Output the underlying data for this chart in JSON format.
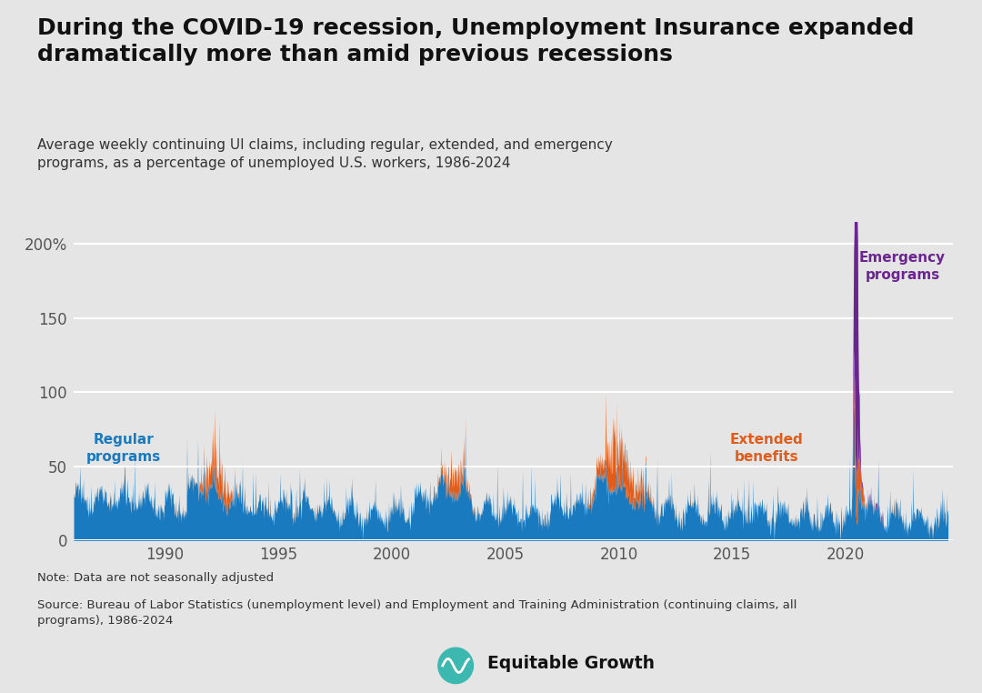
{
  "title": "During the COVID-19 recession, Unemployment Insurance expanded\ndramatically more than amid previous recessions",
  "subtitle": "Average weekly continuing UI claims, including regular, extended, and emergency\nprograms, as a percentage of unemployed U.S. workers, 1986-2024",
  "note": "Note: Data are not seasonally adjusted",
  "source": "Source: Bureau of Labor Statistics (unemployment level) and Employment and Training Administration (continuing claims, all\nprograms), 1986-2024",
  "bg_color": "#e5e5e5",
  "title_color": "#111111",
  "subtitle_color": "#333333",
  "note_color": "#333333",
  "regular_color": "#1a7abf",
  "extended_color": "#e05c1a",
  "emergency_color": "#6b2591",
  "label_regular_color": "#1a7abf",
  "label_extended_color": "#e05c1a",
  "label_emergency_color": "#6b2591",
  "ylim": [
    0,
    215
  ],
  "yticks": [
    0,
    50,
    100,
    150,
    200
  ],
  "ytick_labels": [
    "0",
    "50",
    "100",
    "150",
    "200%"
  ],
  "xticks": [
    1990,
    1995,
    2000,
    2005,
    2010,
    2015,
    2020
  ],
  "xmin": 1986.0,
  "xmax": 2024.7
}
